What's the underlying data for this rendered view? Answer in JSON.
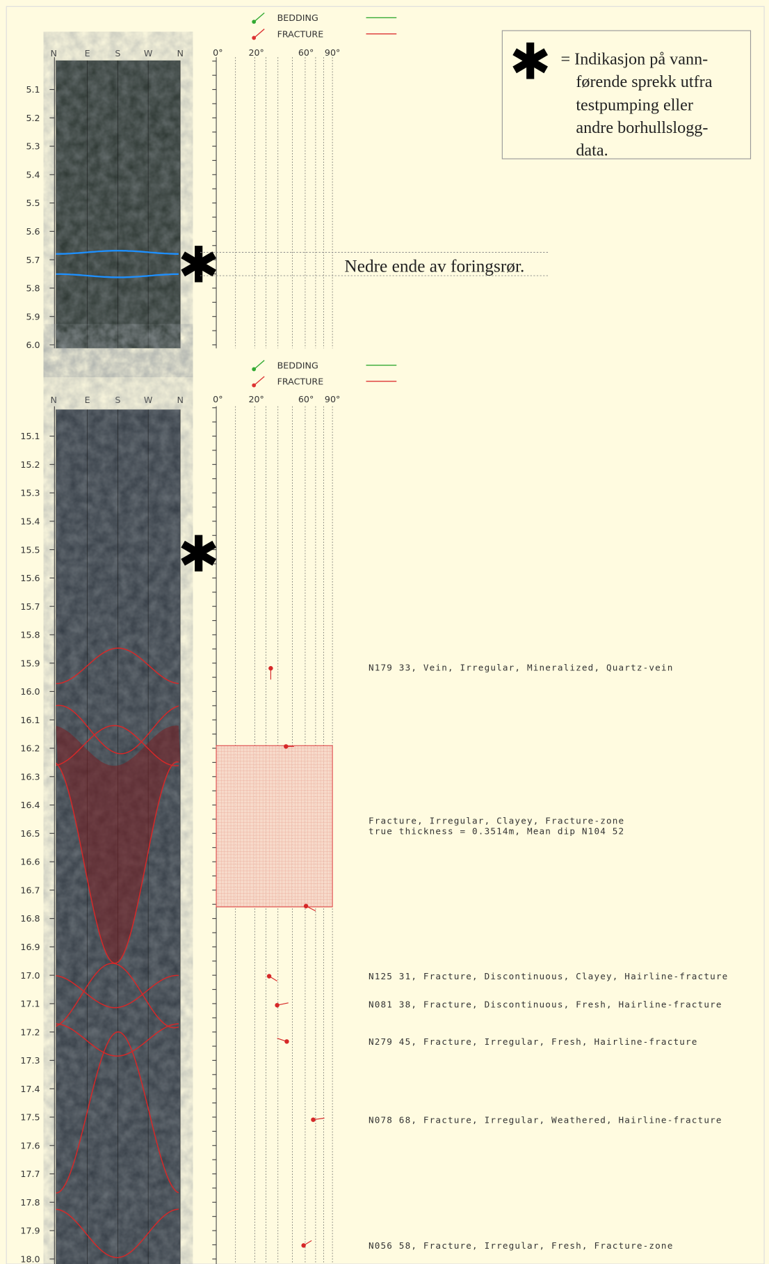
{
  "panels": [
    {
      "legend": [
        "BEDDING",
        "FRACTURE"
      ],
      "compass": [
        "N",
        "E",
        "S",
        "W",
        "N"
      ],
      "dip_scale": [
        "0°",
        "20°",
        "60°",
        "90°"
      ],
      "depths": [
        "5.1",
        "5.2",
        "5.3",
        "5.4",
        "5.5",
        "5.6",
        "5.7",
        "5.8",
        "5.9",
        "6.0"
      ],
      "annotation": "Nedre ende av foringsrør.",
      "descriptions": []
    },
    {
      "legend": [
        "BEDDING",
        "FRACTURE"
      ],
      "compass": [
        "N",
        "E",
        "S",
        "W",
        "N"
      ],
      "dip_scale": [
        "0°",
        "20°",
        "60°",
        "90°"
      ],
      "depths": [
        "15.1",
        "15.2",
        "15.3",
        "15.4",
        "15.5",
        "15.6",
        "15.7",
        "15.8",
        "15.9",
        "16.0",
        "16.1",
        "16.2",
        "16.3",
        "16.4",
        "16.5",
        "16.6",
        "16.7",
        "16.8",
        "16.9",
        "17.0",
        "17.1",
        "17.2",
        "17.3",
        "17.4",
        "17.5",
        "17.6",
        "17.7",
        "17.8",
        "17.9",
        "18.0"
      ],
      "descriptions": [
        "N179 33, Vein, Irregular, Mineralized, Quartz-vein",
        "Fracture, Irregular, Clayey, Fracture-zone",
        "true thickness =  0.3514m, Mean dip N104 52",
        "N125 31, Fracture, Discontinuous, Clayey, Hairline-fracture",
        "N081 38, Fracture, Discontinuous, Fresh, Hairline-fracture",
        "N279 45, Fracture, Irregular, Fresh, Hairline-fracture",
        "N078 68, Fracture, Irregular, Weathered, Hairline-fracture",
        "N056 58, Fracture, Irregular, Fresh, Fracture-zone"
      ]
    }
  ],
  "note": {
    "symbol": "✱",
    "lines": [
      "= Indikasjon på vann-",
      "førende sprekk utfra",
      "testpumping eller",
      "andre borhullslogg-",
      "data."
    ]
  }
}
